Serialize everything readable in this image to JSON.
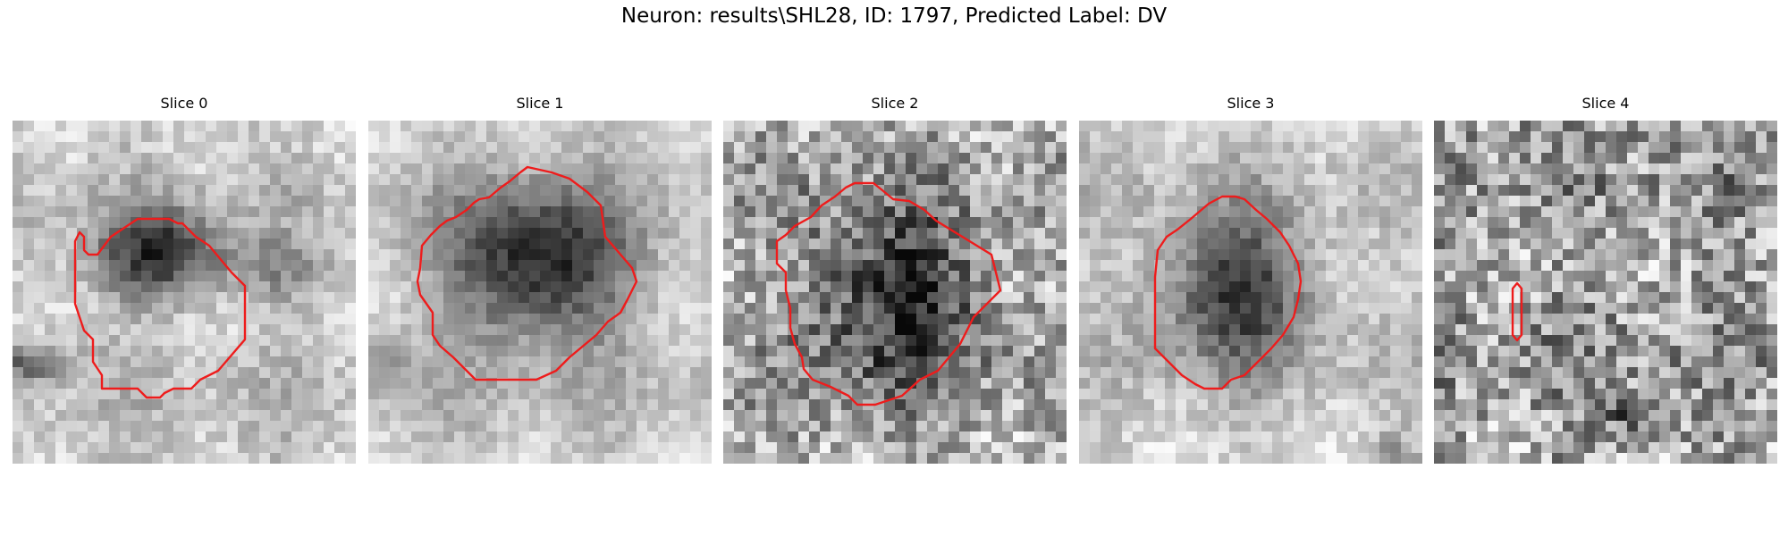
{
  "figure": {
    "title": "Neuron: results\\SHL28, ID: 1797, Predicted Label: DV"
  },
  "contour_color": "#ee1c1c",
  "panels": [
    {
      "title": "Slice 0"
    },
    {
      "title": "Slice 1"
    },
    {
      "title": "Slice 2"
    },
    {
      "title": "Slice 3"
    },
    {
      "title": "Slice 4"
    }
  ]
}
